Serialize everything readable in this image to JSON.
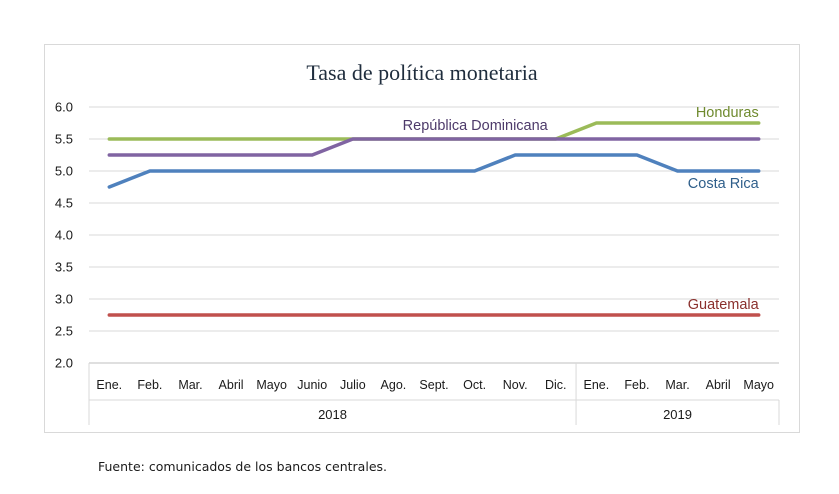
{
  "chart_data": {
    "type": "line",
    "title": "Tasa de política monetaria",
    "xlabel": "",
    "ylabel": "",
    "ylim": [
      2.0,
      6.0
    ],
    "yticks": [
      "2.0",
      "2.5",
      "3.0",
      "3.5",
      "4.0",
      "4.5",
      "5.0",
      "5.5",
      "6.0"
    ],
    "grid": true,
    "categories": [
      "Ene.",
      "Feb.",
      "Mar.",
      "Abril",
      "Mayo",
      "Junio",
      "Julio",
      "Ago.",
      "Sept.",
      "Oct.",
      "Nov.",
      "Dic.",
      "Ene.",
      "Feb.",
      "Mar.",
      "Abril",
      "Mayo"
    ],
    "year_groups": [
      {
        "label": "2018",
        "count": 12
      },
      {
        "label": "2019",
        "count": 5
      }
    ],
    "series": [
      {
        "name": "Honduras",
        "color": "#9bbb59",
        "values": [
          5.5,
          5.5,
          5.5,
          5.5,
          5.5,
          5.5,
          5.5,
          5.5,
          5.5,
          5.5,
          5.5,
          5.5,
          5.75,
          5.75,
          5.75,
          5.75,
          5.75
        ]
      },
      {
        "name": "República Dominicana",
        "color": "#8064a2",
        "values": [
          5.25,
          5.25,
          5.25,
          5.25,
          5.25,
          5.25,
          5.5,
          5.5,
          5.5,
          5.5,
          5.5,
          5.5,
          5.5,
          5.5,
          5.5,
          5.5,
          5.5
        ]
      },
      {
        "name": "Costa Rica",
        "color": "#4f81bd",
        "values": [
          4.75,
          5.0,
          5.0,
          5.0,
          5.0,
          5.0,
          5.0,
          5.0,
          5.0,
          5.0,
          5.25,
          5.25,
          5.25,
          5.25,
          5.0,
          5.0,
          5.0
        ]
      },
      {
        "name": "Guatemala",
        "color": "#c0504d",
        "values": [
          2.75,
          2.75,
          2.75,
          2.75,
          2.75,
          2.75,
          2.75,
          2.75,
          2.75,
          2.75,
          2.75,
          2.75,
          2.75,
          2.75,
          2.75,
          2.75,
          2.75
        ]
      }
    ]
  },
  "source": "Fuente: comunicados de los bancos centrales."
}
